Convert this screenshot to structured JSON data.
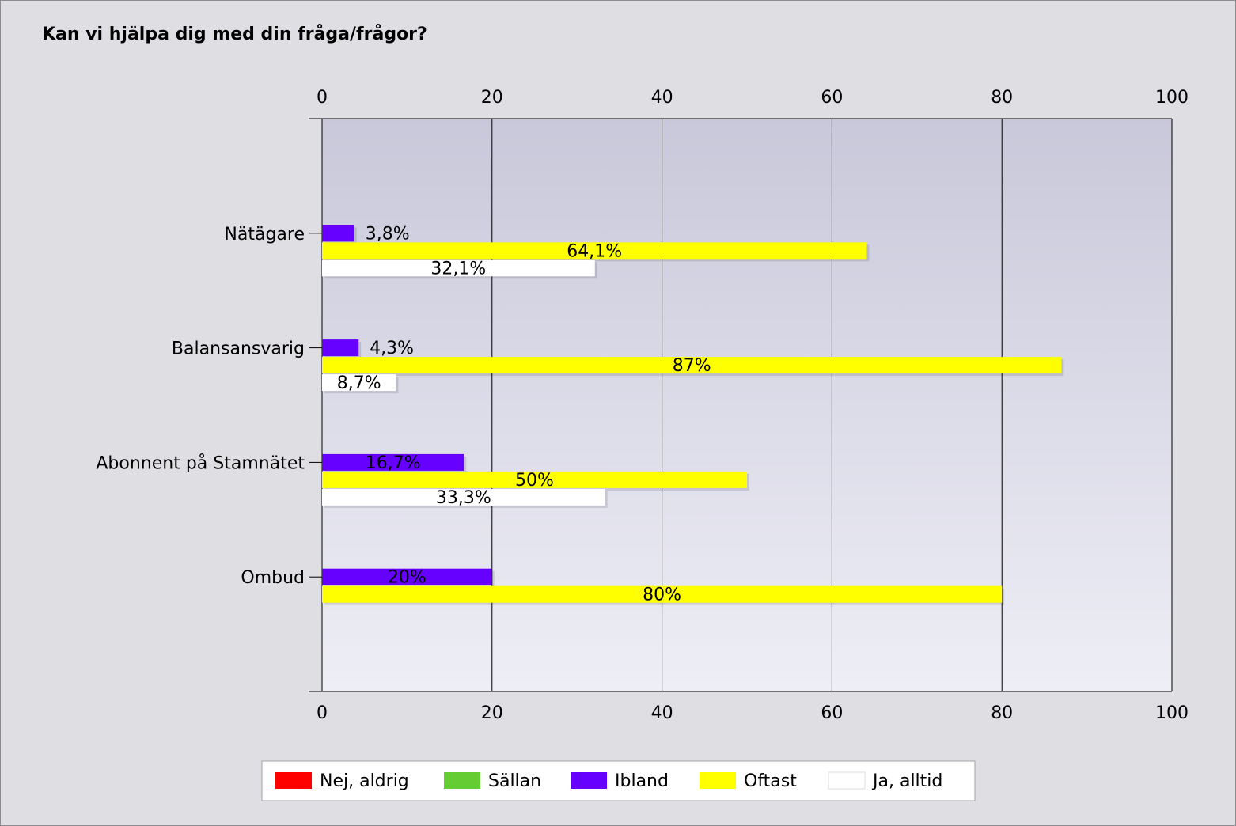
{
  "chart_data": {
    "type": "bar",
    "orientation": "horizontal",
    "title": "Kan vi hjälpa dig med din fråga/frågor?",
    "xlabel": "",
    "ylabel": "",
    "xlim": [
      0,
      100
    ],
    "xticks": [
      0,
      20,
      40,
      60,
      80,
      100
    ],
    "grid": true,
    "legend_position": "bottom",
    "categories": [
      "Nätägare",
      "Balansansvarig",
      "Abonnent på Stamnätet",
      "Ombud"
    ],
    "series": [
      {
        "name": "Nej, aldrig",
        "color": "#ff0000",
        "values": [
          0,
          0,
          0,
          0
        ],
        "labels": [
          "",
          "",
          "",
          ""
        ]
      },
      {
        "name": "Sällan",
        "color": "#66cc33",
        "values": [
          0,
          0,
          0,
          0
        ],
        "labels": [
          "",
          "",
          "",
          ""
        ]
      },
      {
        "name": "Ibland",
        "color": "#6600ff",
        "values": [
          3.8,
          4.3,
          16.7,
          20
        ],
        "labels": [
          "3,8%",
          "4,3%",
          "16,7%",
          "20%"
        ]
      },
      {
        "name": "Oftast",
        "color": "#ffff00",
        "values": [
          64.1,
          87,
          50,
          80
        ],
        "labels": [
          "64,1%",
          "87%",
          "50%",
          "80%"
        ]
      },
      {
        "name": "Ja, alltid",
        "color": "#ffffff",
        "values": [
          32.1,
          8.7,
          33.3,
          0
        ],
        "labels": [
          "32,1%",
          "8,7%",
          "33,3%",
          ""
        ]
      }
    ]
  }
}
